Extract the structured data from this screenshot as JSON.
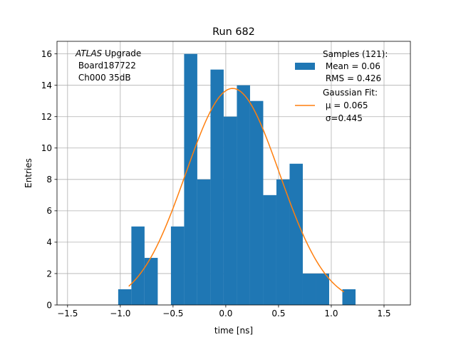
{
  "chart_data": {
    "type": "bar",
    "title": "Run 682",
    "xlabel": "time [ns]",
    "ylabel": "Entries",
    "xlim": [
      -1.6,
      1.75
    ],
    "ylim": [
      0,
      16.8
    ],
    "grid": true,
    "xticks": [
      -1.5,
      -1.0,
      -0.5,
      0.0,
      0.5,
      1.0,
      1.5
    ],
    "xtick_labels": [
      "−1.5",
      "−1.0",
      "−0.5",
      "0.0",
      "0.5",
      "1.0",
      "1.5"
    ],
    "yticks": [
      0,
      2,
      4,
      6,
      8,
      10,
      12,
      14,
      16
    ],
    "ytick_labels": [
      "0",
      "2",
      "4",
      "6",
      "8",
      "10",
      "12",
      "14",
      "16"
    ],
    "histogram": {
      "name": "Samples",
      "color": "#1f77b4",
      "bins": [
        {
          "left": -1.02,
          "right": -0.895,
          "count": 1
        },
        {
          "left": -0.895,
          "right": -0.77,
          "count": 5
        },
        {
          "left": -0.77,
          "right": -0.645,
          "count": 3
        },
        {
          "left": -0.645,
          "right": -0.52,
          "count": 0
        },
        {
          "left": -0.52,
          "right": -0.395,
          "count": 5
        },
        {
          "left": -0.395,
          "right": -0.27,
          "count": 16
        },
        {
          "left": -0.27,
          "right": -0.145,
          "count": 8
        },
        {
          "left": -0.145,
          "right": -0.02,
          "count": 15
        },
        {
          "left": -0.02,
          "right": 0.105,
          "count": 12
        },
        {
          "left": 0.105,
          "right": 0.23,
          "count": 14
        },
        {
          "left": 0.23,
          "right": 0.355,
          "count": 13
        },
        {
          "left": 0.355,
          "right": 0.48,
          "count": 7
        },
        {
          "left": 0.48,
          "right": 0.605,
          "count": 8
        },
        {
          "left": 0.605,
          "right": 0.73,
          "count": 9
        },
        {
          "left": 0.73,
          "right": 0.855,
          "count": 2
        },
        {
          "left": 0.855,
          "right": 0.98,
          "count": 2
        },
        {
          "left": 0.98,
          "right": 1.105,
          "count": 0
        },
        {
          "left": 1.105,
          "right": 1.23,
          "count": 1
        }
      ]
    },
    "fit": {
      "name": "Gaussian Fit",
      "color": "#ff7f0e",
      "mu": 0.065,
      "sigma": 0.445,
      "amplitude": 13.8,
      "x_range": [
        -0.92,
        1.12
      ]
    },
    "annotation": {
      "italic": "ATLAS",
      "lines": [
        " Upgrade",
        " Board187722",
        " Ch000 35dB"
      ]
    },
    "legend": {
      "position": "top-right",
      "entries": [
        {
          "kind": "patch",
          "lines": [
            "Samples (121):",
            " Mean = 0.06",
            " RMS = 0.426"
          ]
        },
        {
          "kind": "line",
          "lines": [
            "Gaussian Fit:",
            " μ = 0.065",
            " σ=0.445"
          ]
        }
      ]
    }
  }
}
